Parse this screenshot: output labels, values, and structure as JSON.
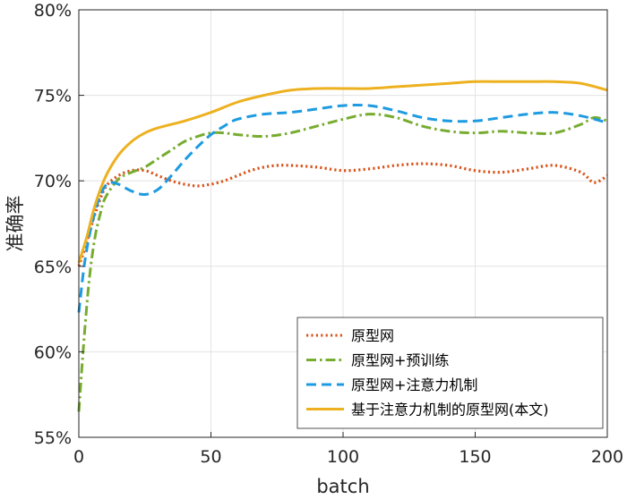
{
  "chart_data": {
    "type": "line",
    "xlabel": "batch",
    "ylabel": "准确率",
    "xlim": [
      0,
      200
    ],
    "ylim": [
      55,
      80
    ],
    "xticks": [
      0,
      50,
      100,
      150,
      200
    ],
    "yticks": [
      55,
      60,
      65,
      70,
      75,
      80
    ],
    "ytick_labels": [
      "55%",
      "60%",
      "65%",
      "70%",
      "75%",
      "80%"
    ],
    "grid": true,
    "legend_position": "bottom-right",
    "series": [
      {
        "name": "原型网",
        "color": "#D95319",
        "dash": "dotted",
        "x": [
          0,
          3,
          6,
          10,
          15,
          20,
          25,
          30,
          35,
          40,
          45,
          50,
          55,
          60,
          65,
          70,
          75,
          80,
          90,
          100,
          110,
          120,
          130,
          140,
          150,
          160,
          170,
          180,
          190,
          195,
          200
        ],
        "y": [
          65.0,
          66.4,
          68.0,
          69.6,
          70.3,
          70.6,
          70.6,
          70.3,
          70.0,
          69.8,
          69.7,
          69.8,
          70.0,
          70.3,
          70.6,
          70.8,
          70.9,
          70.9,
          70.8,
          70.6,
          70.7,
          70.9,
          71.0,
          70.9,
          70.6,
          70.5,
          70.7,
          70.9,
          70.5,
          69.9,
          70.3
        ]
      },
      {
        "name": "原型网+预训练",
        "color": "#77AC30",
        "dash": "dashdot",
        "x": [
          0,
          2,
          4,
          6,
          8,
          10,
          15,
          20,
          25,
          30,
          35,
          40,
          45,
          50,
          55,
          60,
          70,
          80,
          90,
          100,
          110,
          120,
          130,
          140,
          150,
          160,
          170,
          180,
          190,
          195,
          200
        ],
        "y": [
          56.5,
          60.8,
          64.3,
          66.6,
          68.0,
          69.0,
          70.1,
          70.5,
          70.8,
          71.3,
          71.8,
          72.3,
          72.6,
          72.8,
          72.8,
          72.7,
          72.6,
          72.8,
          73.2,
          73.6,
          73.9,
          73.7,
          73.2,
          72.9,
          72.8,
          72.9,
          72.8,
          72.8,
          73.3,
          73.7,
          73.5
        ]
      },
      {
        "name": "原型网+注意力机制",
        "color": "#1E9BE0",
        "dash": "dashed",
        "x": [
          0,
          2,
          4,
          6,
          8,
          10,
          12,
          15,
          20,
          25,
          30,
          35,
          40,
          45,
          50,
          55,
          60,
          70,
          80,
          90,
          100,
          110,
          120,
          130,
          140,
          150,
          160,
          170,
          180,
          190,
          200
        ],
        "y": [
          62.3,
          65.0,
          66.8,
          68.1,
          69.1,
          69.7,
          69.9,
          69.8,
          69.4,
          69.2,
          69.5,
          70.3,
          71.2,
          72.0,
          72.7,
          73.2,
          73.6,
          73.9,
          74.0,
          74.2,
          74.4,
          74.4,
          74.1,
          73.7,
          73.5,
          73.5,
          73.7,
          73.9,
          74.0,
          73.8,
          73.4
        ]
      },
      {
        "name": "基于注意力机制的原型网(本文)",
        "color": "#EDB120",
        "dash": "solid",
        "x": [
          0,
          3,
          6,
          10,
          15,
          20,
          25,
          30,
          40,
          50,
          60,
          70,
          80,
          90,
          100,
          110,
          120,
          130,
          140,
          150,
          160,
          170,
          180,
          190,
          200
        ],
        "y": [
          65.2,
          66.7,
          68.5,
          70.2,
          71.5,
          72.3,
          72.8,
          73.1,
          73.5,
          74.0,
          74.6,
          75.0,
          75.3,
          75.4,
          75.4,
          75.4,
          75.5,
          75.6,
          75.7,
          75.8,
          75.8,
          75.8,
          75.8,
          75.7,
          75.3
        ]
      }
    ]
  }
}
